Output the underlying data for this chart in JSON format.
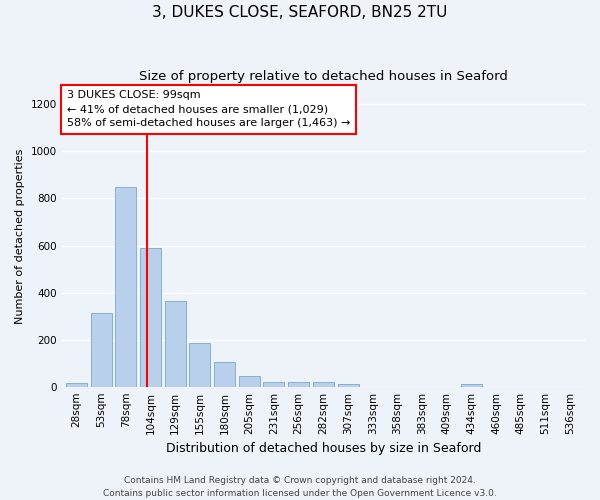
{
  "title": "3, DUKES CLOSE, SEAFORD, BN25 2TU",
  "subtitle": "Size of property relative to detached houses in Seaford",
  "xlabel": "Distribution of detached houses by size in Seaford",
  "ylabel": "Number of detached properties",
  "categories": [
    "28sqm",
    "53sqm",
    "78sqm",
    "104sqm",
    "129sqm",
    "155sqm",
    "180sqm",
    "205sqm",
    "231sqm",
    "256sqm",
    "282sqm",
    "307sqm",
    "333sqm",
    "358sqm",
    "383sqm",
    "409sqm",
    "434sqm",
    "460sqm",
    "485sqm",
    "511sqm",
    "536sqm"
  ],
  "values": [
    15,
    315,
    850,
    590,
    365,
    185,
    105,
    47,
    22,
    18,
    20,
    10,
    0,
    0,
    0,
    0,
    12,
    0,
    0,
    0,
    0
  ],
  "bar_color": "#b8d0eb",
  "bar_edge_color": "#7aaacf",
  "annotation_line1": "3 DUKES CLOSE: 99sqm",
  "annotation_line2": "← 41% of detached houses are smaller (1,029)",
  "annotation_line3": "58% of semi-detached houses are larger (1,463) →",
  "annotation_box_color": "white",
  "annotation_box_edge_color": "red",
  "vline_color": "red",
  "vline_x": 2.85,
  "ylim": [
    0,
    1280
  ],
  "yticks": [
    0,
    200,
    400,
    600,
    800,
    1000,
    1200
  ],
  "bg_color": "#eef2f9",
  "grid_color": "white",
  "footnote": "Contains HM Land Registry data © Crown copyright and database right 2024.\nContains public sector information licensed under the Open Government Licence v3.0.",
  "title_fontsize": 11,
  "subtitle_fontsize": 9.5,
  "xlabel_fontsize": 9,
  "ylabel_fontsize": 8,
  "tick_fontsize": 7.5,
  "annot_fontsize": 8,
  "footnote_fontsize": 6.5
}
